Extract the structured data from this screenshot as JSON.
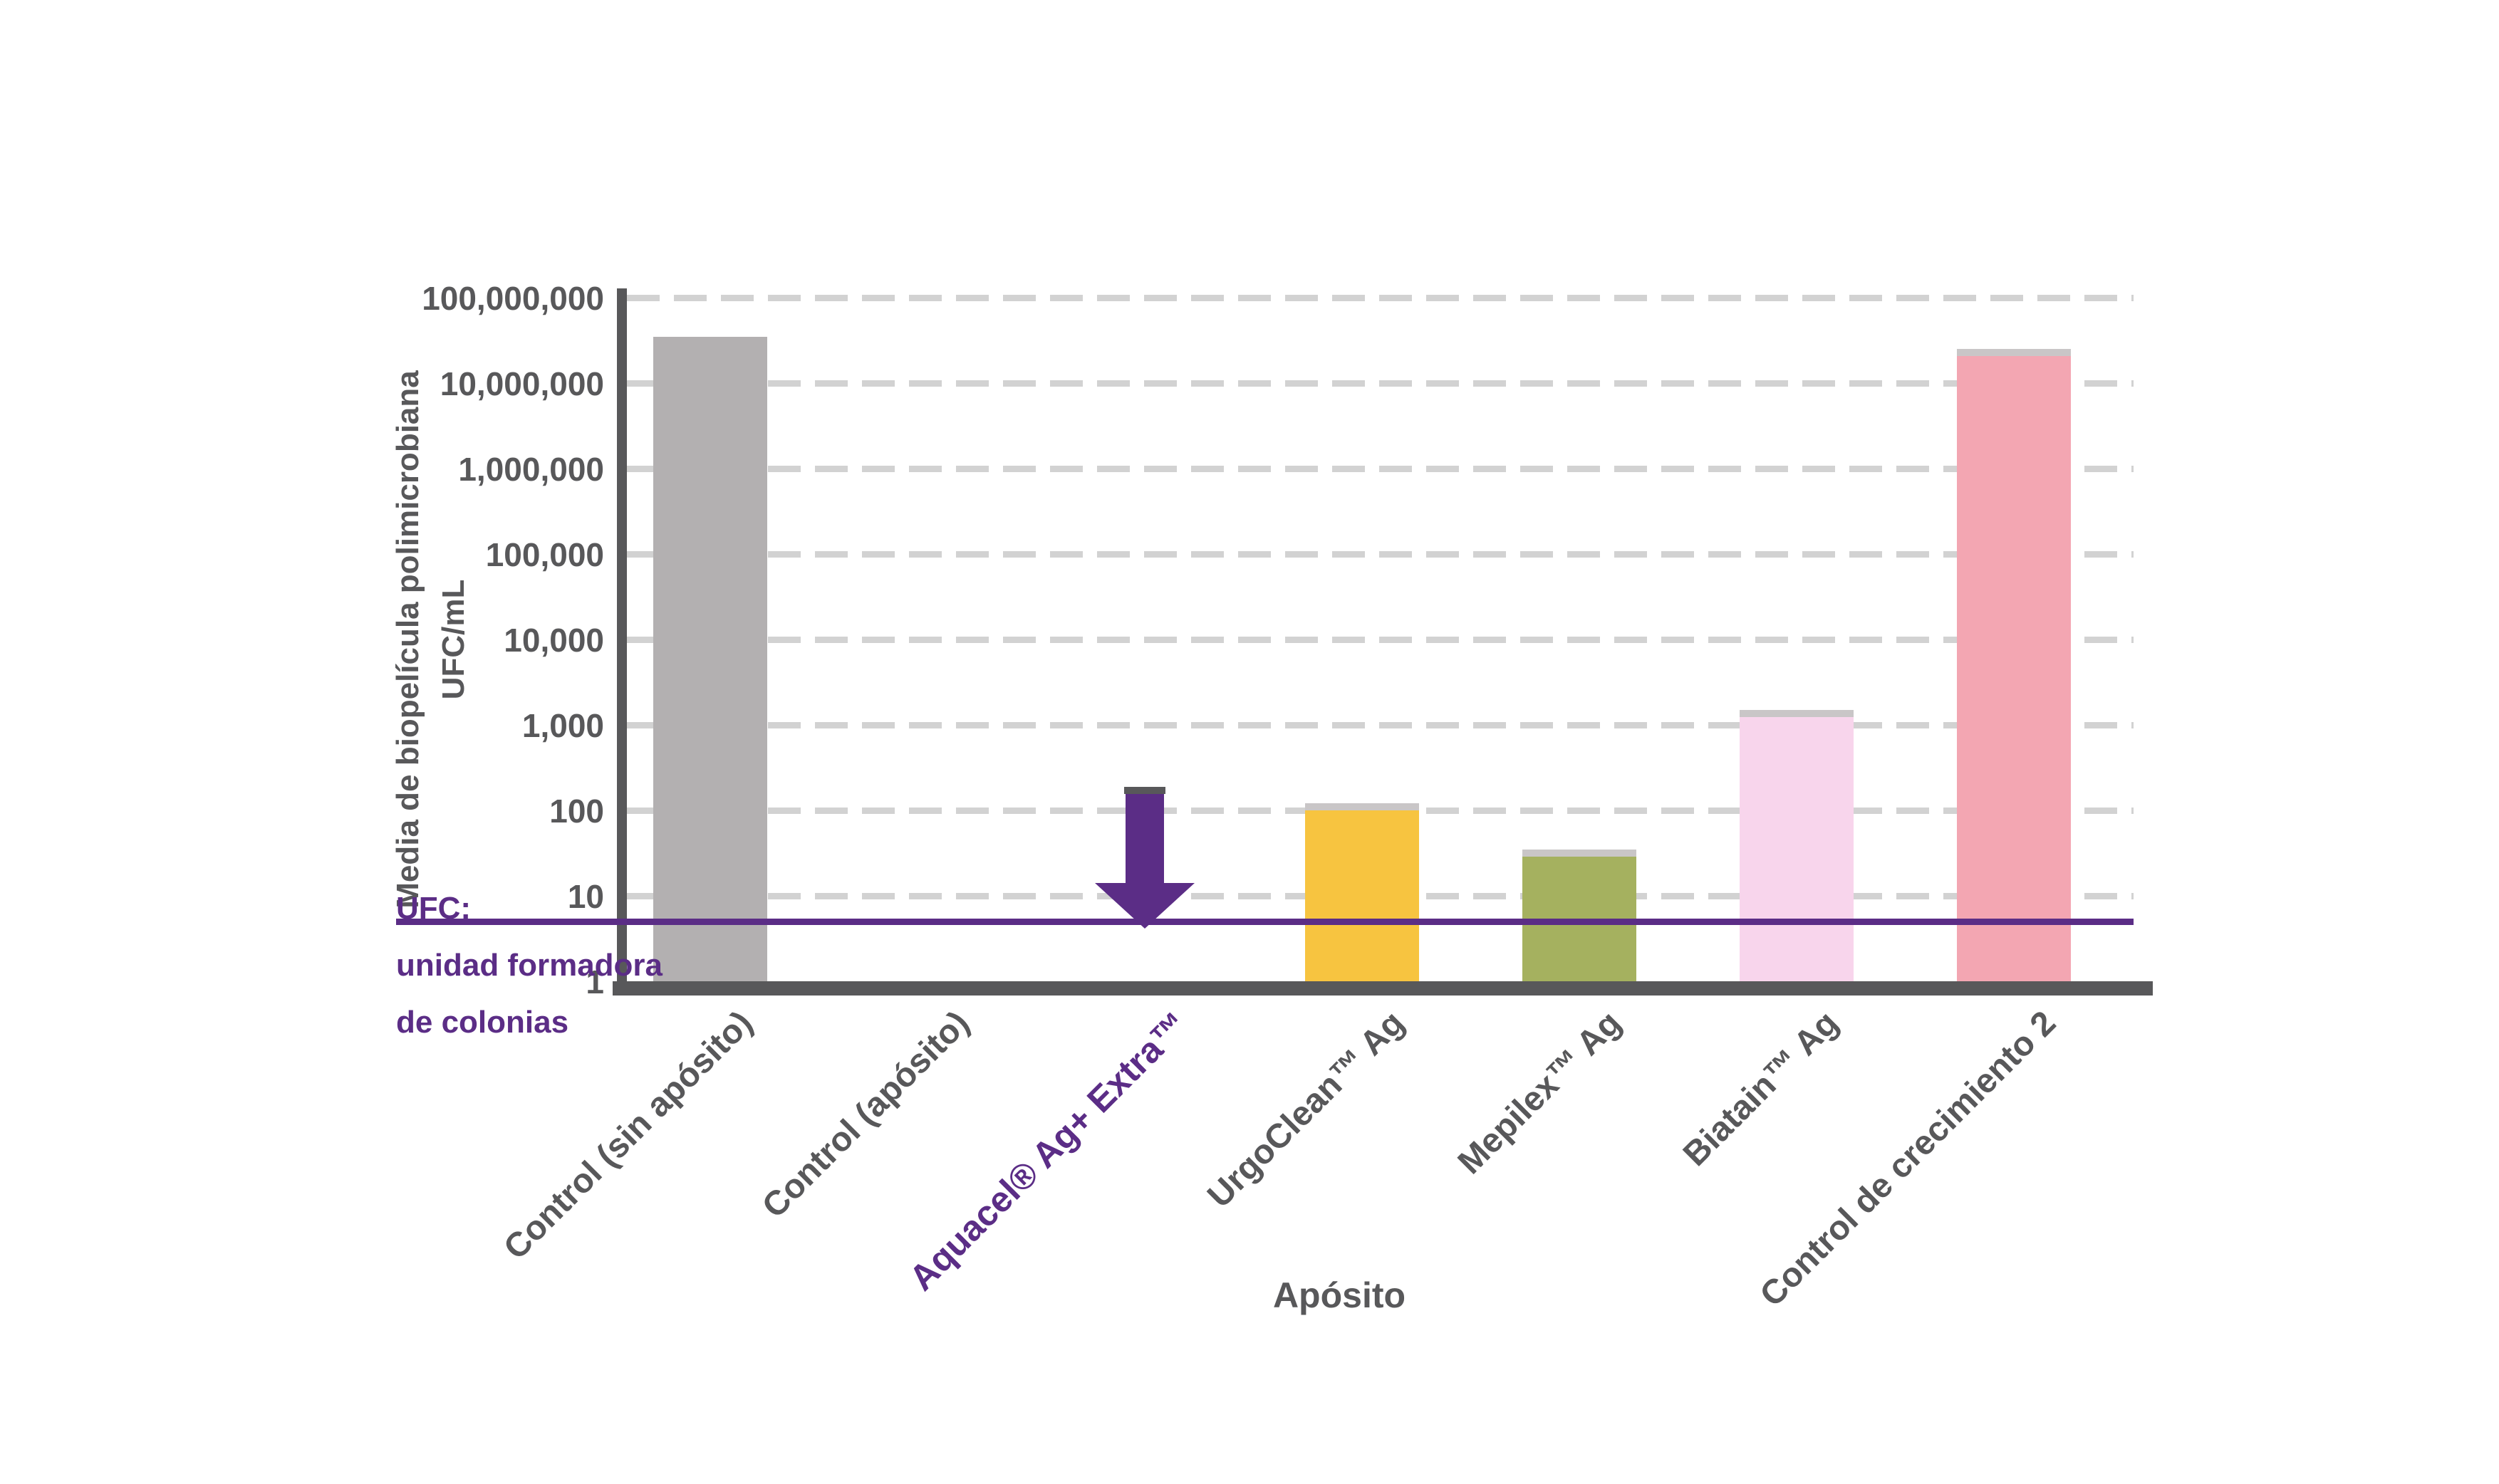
{
  "chart_data": {
    "type": "bar",
    "title": "",
    "xlabel": "Apósito",
    "ylabel": "Media de biopelícula polimicrobiana UFC/mL",
    "ylabel_lines": [
      "Media de biopelícula polimicrobiana",
      "UFC/mL"
    ],
    "yscale": "log",
    "ylim": [
      1,
      100000000
    ],
    "grid": "horizontal-dashed",
    "legend": "none",
    "yticks": [
      {
        "label": "100,000,000",
        "value": 100000000
      },
      {
        "label": "10,000,000",
        "value": 10000000
      },
      {
        "label": "1,000,000",
        "value": 1000000
      },
      {
        "label": "100,000",
        "value": 100000
      },
      {
        "label": "10,000",
        "value": 10000
      },
      {
        "label": "1,000",
        "value": 1000
      },
      {
        "label": "100",
        "value": 100
      },
      {
        "label": "10",
        "value": 10
      },
      {
        "label": "1",
        "value": 1
      }
    ],
    "categories": [
      {
        "label": "Control (sin apósito)",
        "value": 35000000,
        "color": "bar_gray",
        "cap": false,
        "arrow": false,
        "highlight": false
      },
      {
        "label": "Control (apósito)",
        "value": null,
        "color": null,
        "cap": false,
        "arrow": false,
        "highlight": false
      },
      {
        "label": "Aquacel® Ag+ Extra™",
        "value": null,
        "color": "purple",
        "cap": false,
        "arrow": true,
        "highlight": true
      },
      {
        "label": "UrgoClean™ Ag",
        "value": 120,
        "color": "yellow",
        "cap": true,
        "arrow": false,
        "highlight": false
      },
      {
        "label": "Mepilex™ Ag",
        "value": 35,
        "color": "green",
        "cap": true,
        "arrow": false,
        "highlight": false
      },
      {
        "label": "Biatain™ Ag",
        "value": 1500,
        "color": "light_pink",
        "cap": true,
        "arrow": false,
        "highlight": false
      },
      {
        "label": "Control de crecimiento 2",
        "value": 25000000,
        "color": "dark_pink",
        "cap": true,
        "arrow": false,
        "highlight": false
      }
    ],
    "detection_limit_line": {
      "value": 5,
      "meaning": "arrow indicates result below this purple line"
    }
  },
  "footnote": {
    "line1": "UFC:",
    "line2": "unidad formadora",
    "line3": "de colonias"
  },
  "colors": {
    "background": "#ffffff",
    "axis_gray": "#58585a",
    "grid_gray": "#d2d2d2",
    "text_gray": "#58585a",
    "purple": "#5b2d86",
    "bar_gray": "#b3b0b1",
    "yellow": "#f7c440",
    "green": "#a5b15f",
    "light_pink": "#f8d5ec",
    "dark_pink": "#f3a6b2",
    "cap_gray": "#c9c6c7"
  }
}
